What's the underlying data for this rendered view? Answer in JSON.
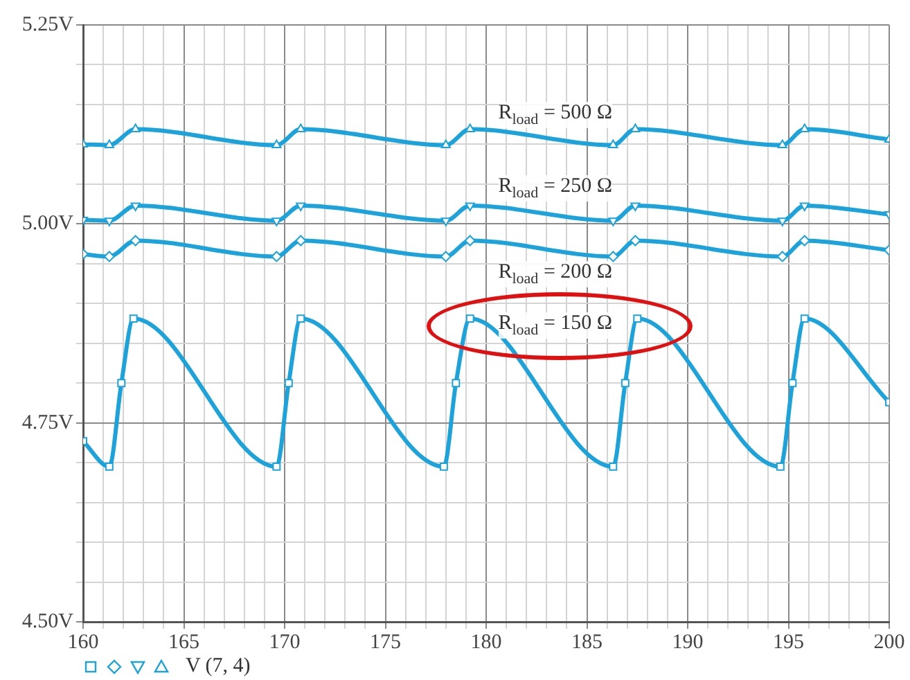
{
  "chart_data": {
    "type": "line",
    "grid": true,
    "line_style": "solid",
    "xlim": [
      160,
      200
    ],
    "xticks": [
      160,
      {
        "value": 161,
        "label": null
      },
      {
        "value": 162,
        "label": null
      },
      {
        "value": 163,
        "label": null
      },
      {
        "value": 164,
        "label": null
      },
      165,
      {
        "value": 166,
        "label": null
      },
      {
        "value": 167,
        "label": null
      },
      {
        "value": 168,
        "label": null
      },
      {
        "value": 169,
        "label": null
      },
      170,
      {
        "value": 171,
        "label": null
      },
      {
        "value": 172,
        "label": null
      },
      {
        "value": 173,
        "label": null
      },
      {
        "value": 174,
        "label": null
      },
      175,
      {
        "value": 176,
        "label": null
      },
      {
        "value": 177,
        "label": null
      },
      {
        "value": 178,
        "label": null
      },
      {
        "value": 179,
        "label": null
      },
      180,
      {
        "value": 181,
        "label": null
      },
      {
        "value": 182,
        "label": null
      },
      {
        "value": 183,
        "label": null
      },
      {
        "value": 184,
        "label": null
      },
      185,
      {
        "value": 186,
        "label": null
      },
      {
        "value": 187,
        "label": null
      },
      {
        "value": 188,
        "label": null
      },
      {
        "value": 189,
        "label": null
      },
      190,
      {
        "value": 191,
        "label": null
      },
      {
        "value": 192,
        "label": null
      },
      {
        "value": 193,
        "label": null
      },
      {
        "value": 194,
        "label": null
      },
      195,
      {
        "value": 196,
        "label": null
      },
      {
        "value": 197,
        "label": null
      },
      {
        "value": 198,
        "label": null
      },
      {
        "value": 199,
        "label": null
      },
      200
    ],
    "ylim": [
      4.5,
      5.25
    ],
    "yticks": [
      {
        "value": 4.5,
        "label": "4.50V"
      },
      {
        "value": 4.55,
        "label": null
      },
      {
        "value": 4.6,
        "label": null
      },
      {
        "value": 4.65,
        "label": null
      },
      {
        "value": 4.7,
        "label": null
      },
      {
        "value": 4.75,
        "label": "4.75V"
      },
      {
        "value": 4.8,
        "label": null
      },
      {
        "value": 4.85,
        "label": null
      },
      {
        "value": 4.9,
        "label": null
      },
      {
        "value": 4.95,
        "label": null
      },
      {
        "value": 5.0,
        "label": "5.00V"
      },
      {
        "value": 5.05,
        "label": null
      },
      {
        "value": 5.1,
        "label": null
      },
      {
        "value": 5.15,
        "label": null
      },
      {
        "value": 5.2,
        "label": null
      },
      {
        "value": 5.25,
        "label": "5.25V"
      }
    ],
    "series": [
      {
        "name": "R$_{load}$ = 500 Ω",
        "color": "#1ca3dc",
        "marker": "triangle",
        "x": [
          160,
          161.3,
          162.6,
          169.6,
          170.8,
          178,
          179.2,
          186.3,
          187.4,
          194.7,
          195.8,
          200
        ],
        "values": [
          5.1,
          5.099,
          5.119,
          5.099,
          5.119,
          5.099,
          5.119,
          5.099,
          5.119,
          5.099,
          5.119,
          5.106
        ]
      },
      {
        "name": "R$_{load}$ = 250 Ω",
        "color": "#1ca3dc",
        "marker": "triangle-down",
        "x": [
          160,
          161.3,
          162.6,
          169.6,
          170.8,
          178,
          179.2,
          186.3,
          187.4,
          194.7,
          195.8,
          200
        ],
        "values": [
          5.005,
          5.004,
          5.023,
          5.004,
          5.023,
          5.004,
          5.023,
          5.004,
          5.023,
          5.004,
          5.023,
          5.012
        ]
      },
      {
        "name": "R$_{load}$ = 200 Ω",
        "color": "#1ca3dc",
        "marker": "diamond",
        "x": [
          160,
          161.3,
          162.6,
          169.6,
          170.8,
          178,
          179.2,
          186.3,
          187.4,
          194.7,
          195.8,
          200
        ],
        "values": [
          4.962,
          4.959,
          4.979,
          4.959,
          4.979,
          4.959,
          4.979,
          4.959,
          4.979,
          4.959,
          4.979,
          4.967
        ]
      },
      {
        "name": "R$_{load}$ = 150 Ω",
        "color": "#1ca3dc",
        "marker": "square",
        "x": [
          160,
          161.3,
          161.9,
          162.5,
          169.6,
          170.2,
          170.8,
          177.9,
          178.5,
          179.2,
          186.3,
          186.9,
          187.5,
          194.6,
          195.2,
          195.8,
          200
        ],
        "values": [
          4.727,
          4.695,
          4.8,
          4.881,
          4.695,
          4.8,
          4.881,
          4.695,
          4.8,
          4.881,
          4.695,
          4.8,
          4.881,
          4.695,
          4.8,
          4.881,
          4.776
        ]
      }
    ],
    "annotations": [
      "V (7, 4)"
    ]
  }
}
